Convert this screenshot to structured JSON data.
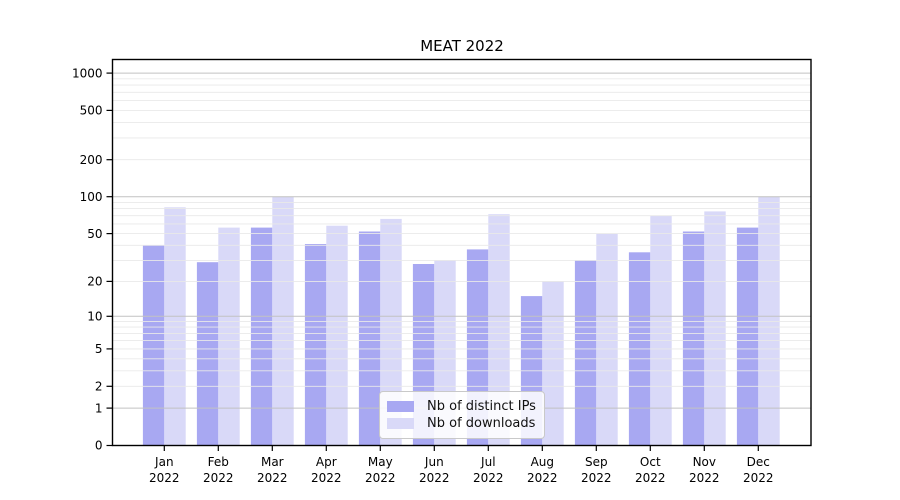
{
  "title": "MEAT 2022",
  "legend": {
    "position": "lower center",
    "items": [
      {
        "label": "Nb of distinct IPs",
        "color": "#a8a8f2"
      },
      {
        "label": "Nb of downloads",
        "color": "#d9d9f8"
      }
    ]
  },
  "chart_data": {
    "type": "bar",
    "title": "MEAT 2022",
    "categories": [
      "Jan 2022",
      "Feb 2022",
      "Mar 2022",
      "Apr 2022",
      "May 2022",
      "Jun 2022",
      "Jul 2022",
      "Aug 2022",
      "Sep 2022",
      "Oct 2022",
      "Nov 2022",
      "Dec 2022"
    ],
    "category_line1": [
      "Jan",
      "Feb",
      "Mar",
      "Apr",
      "May",
      "Jun",
      "Jul",
      "Aug",
      "Sep",
      "Oct",
      "Nov",
      "Dec"
    ],
    "category_line2": "2022",
    "series": [
      {
        "name": "Nb of distinct IPs",
        "color": "#a8a8f2",
        "values": [
          40,
          29,
          56,
          41,
          52,
          28,
          37,
          15,
          30,
          35,
          52,
          56
        ]
      },
      {
        "name": "Nb of downloads",
        "color": "#d9d9f8",
        "values": [
          82,
          56,
          100,
          58,
          66,
          30,
          72,
          20,
          50,
          70,
          76,
          100
        ]
      }
    ],
    "y_scale": "symlog-log1p",
    "ylim": [
      0,
      1300
    ],
    "y_ticks": [
      0,
      1,
      2,
      5,
      10,
      20,
      50,
      100,
      200,
      500,
      1000
    ],
    "y_major_grid": [
      1,
      10,
      100,
      1000
    ],
    "y_minor_grid": [
      2,
      3,
      4,
      5,
      6,
      7,
      8,
      9,
      20,
      30,
      40,
      50,
      60,
      70,
      80,
      90,
      200,
      300,
      400,
      500,
      600,
      700,
      800,
      900
    ],
    "grid": true,
    "xlabel": "",
    "ylabel": "",
    "legend_position": "lower center",
    "colors": {
      "major_grid": "#c2c2c2",
      "minor_grid": "#e9e9e9",
      "axis": "#000000",
      "tick_text": "#000000",
      "background": "#ffffff"
    }
  }
}
